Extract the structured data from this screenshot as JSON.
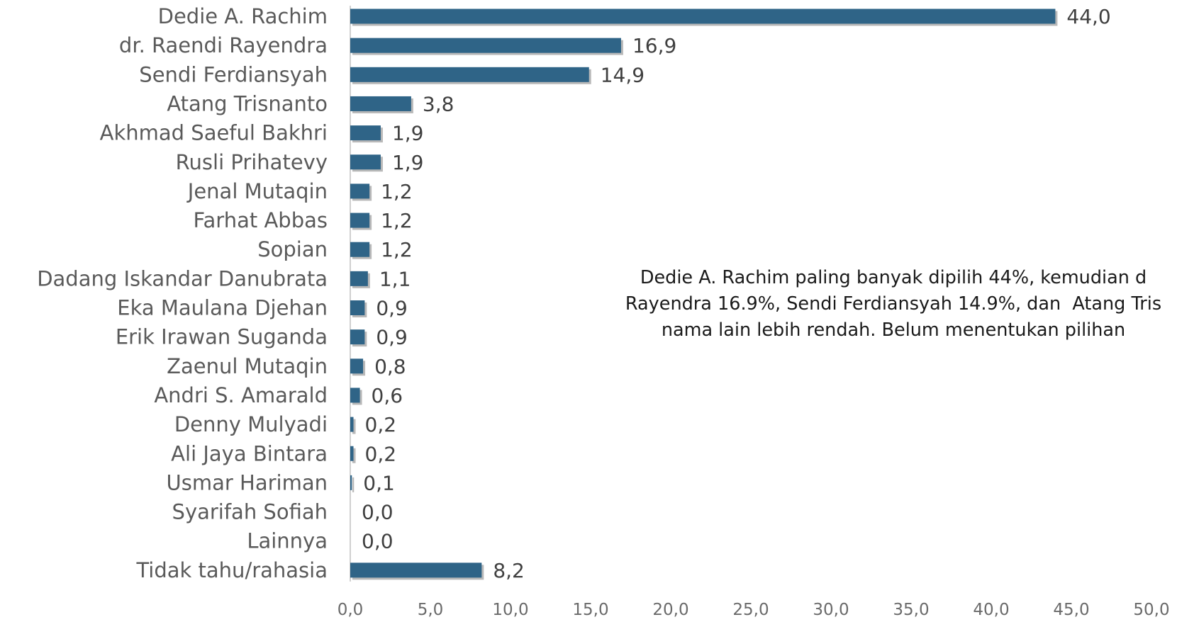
{
  "chart_data": {
    "type": "bar",
    "orientation": "horizontal",
    "categories": [
      "Dedie A. Rachim",
      "dr. Raendi Rayendra",
      "Sendi Ferdiansyah",
      "Atang Trisnanto",
      "Akhmad Saeful Bakhri",
      "Rusli Prihatevy",
      "Jenal Mutaqin",
      "Farhat Abbas",
      "Sopian",
      "Dadang Iskandar Danubrata",
      "Eka Maulana Djehan",
      "Erik Irawan Suganda",
      "Zaenul Mutaqin",
      "Andri S. Amarald",
      "Denny Mulyadi",
      "Ali Jaya Bintara",
      "Usmar Hariman",
      "Syarifah Sofiah",
      "Lainnya",
      "Tidak tahu/rahasia"
    ],
    "values": [
      44.0,
      16.9,
      14.9,
      3.8,
      1.9,
      1.9,
      1.2,
      1.2,
      1.2,
      1.1,
      0.9,
      0.9,
      0.8,
      0.6,
      0.2,
      0.2,
      0.1,
      0.0,
      0.0,
      8.2
    ],
    "value_labels": [
      "44,0",
      "16,9",
      "14,9",
      "3,8",
      "1,9",
      "1,9",
      "1,2",
      "1,2",
      "1,2",
      "1,1",
      "0,9",
      "0,9",
      "0,8",
      "0,6",
      "0,2",
      "0,2",
      "0,1",
      "0,0",
      "0,0",
      "8,2"
    ],
    "xlim": [
      0,
      50
    ],
    "x_ticks": [
      "0,0",
      "5,0",
      "10,0",
      "15,0",
      "20,0",
      "25,0",
      "30,0",
      "35,0",
      "40,0",
      "45,0",
      "50,0"
    ],
    "bar_color": "#2f6487",
    "grid": false,
    "annotation": [
      "Dedie A. Rachim paling banyak dipilih 44%, kemudian d",
      "Rayendra 16.9%, Sendi Ferdiansyah 14.9%, dan  Atang Tris",
      "nama lain lebih rendah. Belum menentukan pilihan"
    ]
  }
}
